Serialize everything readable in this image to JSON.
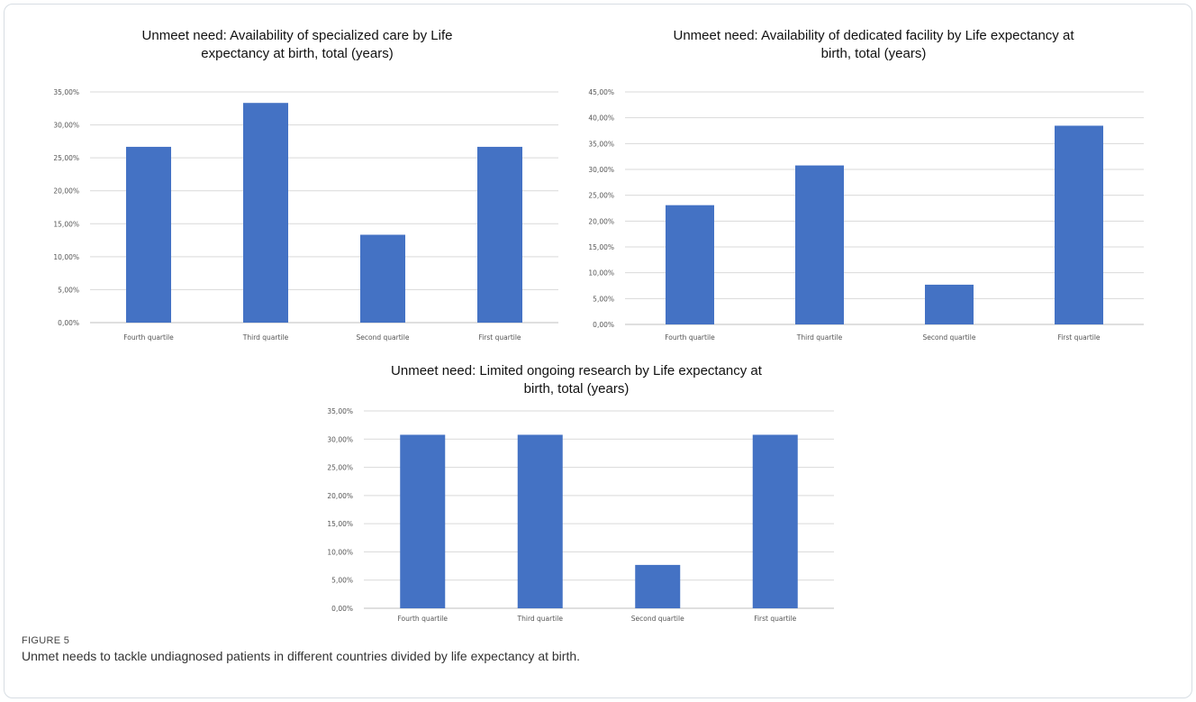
{
  "figure": {
    "label": "FIGURE 5",
    "caption": "Unmet needs to tackle undiagnosed patients in different countries divided by life expectancy at birth."
  },
  "colors": {
    "bar": "#4472c4",
    "grid": "#d9d9d9",
    "frame": "#d7dde3"
  },
  "chart_data": [
    {
      "type": "bar",
      "title_lines": [
        "Unmeet need: Availability of specialized care  by Life",
        "expectancy at birth, total (years)"
      ],
      "categories": [
        "Fourth quartile",
        "Third quartile",
        "Second quartile",
        "First quartile"
      ],
      "values": [
        26.67,
        33.33,
        13.33,
        26.67
      ],
      "ylim": [
        0,
        35
      ],
      "yticks": [
        0,
        5,
        10,
        15,
        20,
        25,
        30,
        35
      ],
      "ytick_labels": [
        "0,00%",
        "5,00%",
        "10,00%",
        "15,00%",
        "20,00%",
        "25,00%",
        "30,00%",
        "35,00%"
      ],
      "grid": true,
      "legend": "none"
    },
    {
      "type": "bar",
      "title_lines": [
        "Unmeet need: Availability of dedicated facility by Life expectancy at",
        "birth, total (years)"
      ],
      "categories": [
        "Fourth quartile",
        "Third quartile",
        "Second quartile",
        "First quartile"
      ],
      "values": [
        23.08,
        30.77,
        7.69,
        38.46
      ],
      "ylim": [
        0,
        45
      ],
      "yticks": [
        0,
        5,
        10,
        15,
        20,
        25,
        30,
        35,
        40,
        45
      ],
      "ytick_labels": [
        "0,00%",
        "5,00%",
        "10,00%",
        "15,00%",
        "20,00%",
        "25,00%",
        "30,00%",
        "35,00%",
        "40,00%",
        "45,00%"
      ],
      "grid": true,
      "legend": "none"
    },
    {
      "type": "bar",
      "title_lines": [
        "Unmeet need:  Limited ongoing research  by Life expectancy at",
        "birth, total (years)"
      ],
      "categories": [
        "Fourth quartile",
        "Third quartile",
        "Second quartile",
        "First quartile"
      ],
      "values": [
        30.77,
        30.77,
        7.69,
        30.77
      ],
      "ylim": [
        0,
        35
      ],
      "yticks": [
        0,
        5,
        10,
        15,
        20,
        25,
        30,
        35
      ],
      "ytick_labels": [
        "0,00%",
        "5,00%",
        "10,00%",
        "15,00%",
        "20,00%",
        "25,00%",
        "30,00%",
        "35,00%"
      ],
      "grid": true,
      "legend": "none"
    }
  ]
}
